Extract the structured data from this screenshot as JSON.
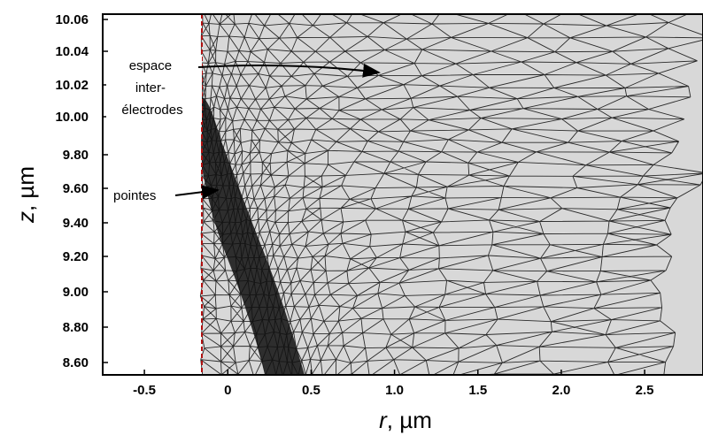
{
  "figure": {
    "x_axis": {
      "variable": "r",
      "unit": ", µm",
      "ticks": [
        "-0.5",
        "0",
        "0.5",
        "1.0",
        "1.5",
        "2.0",
        "2.5"
      ],
      "range": [
        -0.75,
        2.85
      ]
    },
    "y_axis": {
      "variable": "z",
      "unit": ", µm",
      "ticks": [
        "8.60",
        "8.80",
        "9.00",
        "9.20",
        "9.40",
        "9.60",
        "9.80",
        "10.00",
        "10.02",
        "10.04",
        "10.06"
      ],
      "note": "broken scale: 8.60–10.00 in steps of 0.20, then 10.00–10.06 in steps of 0.02"
    },
    "annotations": {
      "gap_label_lines": [
        "espace",
        "inter-",
        "électrodes"
      ],
      "tips_label": "pointes"
    },
    "colors": {
      "mesh_fill": "#d8d8d8",
      "mesh_line": "#2a2a2a",
      "electrode_line": "#b01010",
      "background": "#ffffff"
    }
  }
}
